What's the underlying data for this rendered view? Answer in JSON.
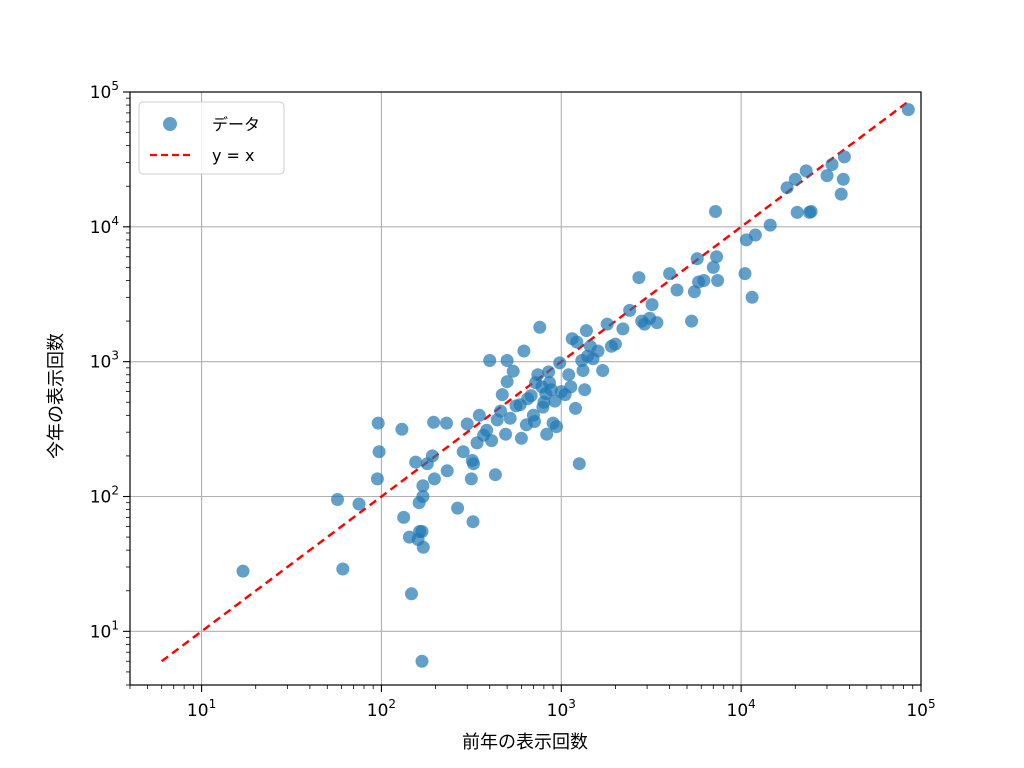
{
  "chart_data": {
    "type": "scatter",
    "xlabel": "前年の表示回数",
    "ylabel": "今年の表示回数",
    "xscale": "log",
    "yscale": "log",
    "xlim": [
      4,
      100000
    ],
    "ylim": [
      4,
      100000
    ],
    "grid": true,
    "legend_position": "top-left",
    "x_ticks": [
      {
        "value": 10,
        "base": "10",
        "exp": "1"
      },
      {
        "value": 100,
        "base": "10",
        "exp": "2"
      },
      {
        "value": 1000,
        "base": "10",
        "exp": "3"
      },
      {
        "value": 10000,
        "base": "10",
        "exp": "4"
      },
      {
        "value": 100000,
        "base": "10",
        "exp": "5"
      }
    ],
    "y_ticks": [
      {
        "value": 10,
        "base": "10",
        "exp": "1"
      },
      {
        "value": 100,
        "base": "10",
        "exp": "2"
      },
      {
        "value": 1000,
        "base": "10",
        "exp": "3"
      },
      {
        "value": 10000,
        "base": "10",
        "exp": "4"
      },
      {
        "value": 100000,
        "base": "10",
        "exp": "5"
      }
    ],
    "series": [
      {
        "name": "データ",
        "kind": "scatter",
        "color": "#1f77b4",
        "points": [
          [
            17,
            28
          ],
          [
            57,
            95
          ],
          [
            61,
            29
          ],
          [
            75,
            88
          ],
          [
            95,
            135
          ],
          [
            97,
            215
          ],
          [
            96,
            350
          ],
          [
            130,
            315
          ],
          [
            133,
            70
          ],
          [
            143,
            50
          ],
          [
            147,
            19
          ],
          [
            155,
            180
          ],
          [
            160,
            48
          ],
          [
            162,
            90
          ],
          [
            163,
            55
          ],
          [
            168,
            55
          ],
          [
            168,
            6
          ],
          [
            170,
            120
          ],
          [
            170,
            100
          ],
          [
            171,
            42
          ],
          [
            180,
            175
          ],
          [
            192,
            200
          ],
          [
            195,
            355
          ],
          [
            197,
            135
          ],
          [
            230,
            350
          ],
          [
            232,
            155
          ],
          [
            265,
            82
          ],
          [
            285,
            215
          ],
          [
            300,
            345
          ],
          [
            316,
            135
          ],
          [
            320,
            185
          ],
          [
            323,
            65
          ],
          [
            325,
            175
          ],
          [
            340,
            250
          ],
          [
            350,
            400
          ],
          [
            370,
            285
          ],
          [
            385,
            310
          ],
          [
            400,
            1020
          ],
          [
            410,
            260
          ],
          [
            430,
            145
          ],
          [
            440,
            370
          ],
          [
            460,
            430
          ],
          [
            470,
            570
          ],
          [
            490,
            290
          ],
          [
            500,
            1020
          ],
          [
            500,
            710
          ],
          [
            520,
            380
          ],
          [
            540,
            850
          ],
          [
            560,
            470
          ],
          [
            590,
            480
          ],
          [
            600,
            270
          ],
          [
            620,
            1200
          ],
          [
            640,
            340
          ],
          [
            650,
            530
          ],
          [
            680,
            560
          ],
          [
            700,
            400
          ],
          [
            710,
            360
          ],
          [
            720,
            700
          ],
          [
            740,
            800
          ],
          [
            760,
            1800
          ],
          [
            780,
            650
          ],
          [
            790,
            460
          ],
          [
            800,
            500
          ],
          [
            820,
            580
          ],
          [
            830,
            290
          ],
          [
            850,
            840
          ],
          [
            860,
            700
          ],
          [
            880,
            620
          ],
          [
            900,
            350
          ],
          [
            920,
            510
          ],
          [
            940,
            330
          ],
          [
            980,
            980
          ],
          [
            1000,
            600
          ],
          [
            1050,
            570
          ],
          [
            1100,
            800
          ],
          [
            1130,
            650
          ],
          [
            1150,
            1480
          ],
          [
            1200,
            450
          ],
          [
            1220,
            1400
          ],
          [
            1260,
            175
          ],
          [
            1300,
            1020
          ],
          [
            1320,
            860
          ],
          [
            1350,
            620
          ],
          [
            1380,
            1700
          ],
          [
            1400,
            1100
          ],
          [
            1450,
            1300
          ],
          [
            1500,
            1050
          ],
          [
            1600,
            1200
          ],
          [
            1700,
            860
          ],
          [
            1800,
            1900
          ],
          [
            1900,
            1300
          ],
          [
            2000,
            1350
          ],
          [
            2200,
            1750
          ],
          [
            2400,
            2400
          ],
          [
            2700,
            4200
          ],
          [
            2800,
            2000
          ],
          [
            2900,
            1900
          ],
          [
            3100,
            2100
          ],
          [
            3200,
            2650
          ],
          [
            3400,
            1950
          ],
          [
            4000,
            4500
          ],
          [
            4400,
            3400
          ],
          [
            5300,
            2000
          ],
          [
            5500,
            3300
          ],
          [
            5700,
            5800
          ],
          [
            5800,
            3900
          ],
          [
            6200,
            4000
          ],
          [
            7000,
            5000
          ],
          [
            7200,
            13000
          ],
          [
            7300,
            6000
          ],
          [
            7400,
            4000
          ],
          [
            10500,
            4500
          ],
          [
            10700,
            8000
          ],
          [
            11500,
            3000
          ],
          [
            12000,
            8700
          ],
          [
            14500,
            10300
          ],
          [
            18000,
            19500
          ],
          [
            20000,
            22500
          ],
          [
            20500,
            12800
          ],
          [
            23000,
            26000
          ],
          [
            24000,
            12800
          ],
          [
            24500,
            13000
          ],
          [
            30000,
            24000
          ],
          [
            32000,
            29000
          ],
          [
            36000,
            17500
          ],
          [
            37000,
            22500
          ],
          [
            37500,
            33000
          ],
          [
            85000,
            74000
          ]
        ]
      },
      {
        "name": "y = x",
        "kind": "line",
        "color": "#ff0000",
        "dash": "dashed",
        "points": [
          [
            6,
            6
          ],
          [
            85000,
            85000
          ]
        ]
      }
    ]
  }
}
